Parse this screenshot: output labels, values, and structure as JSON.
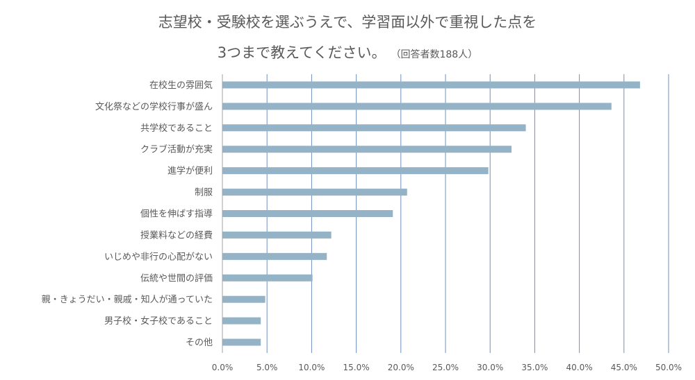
{
  "chart_data": {
    "type": "bar",
    "orientation": "horizontal",
    "title_line1": "志望校・受験校を選ぶうえで、学習面以外で重視した点を",
    "title_line2": "3つまで教えてください。",
    "subtitle": "（回答者数188人）",
    "categories": [
      "在校生の雰囲気",
      "文化祭などの学校行事が盛ん",
      "共学校であること",
      "クラブ活動が充実",
      "進学が便利",
      "制服",
      "個性を伸ばす指導",
      "授業料などの経費",
      "いじめや非行の心配がない",
      "伝統や世間の評価",
      "親・きょうだい・親戚・知人が通っていた",
      "男子校・女子校であること",
      "その他"
    ],
    "values": [
      46.8,
      43.6,
      34.0,
      32.4,
      29.8,
      20.7,
      19.1,
      12.2,
      11.7,
      10.1,
      4.8,
      4.3,
      4.3
    ],
    "xlim": [
      0,
      50
    ],
    "x_ticks": [
      "0.0%",
      "5.0%",
      "10.0%",
      "15.0%",
      "20.0%",
      "25.0%",
      "30.0%",
      "35.0%",
      "40.0%",
      "45.0%",
      "50.0%"
    ],
    "bar_color": "#95b3c7",
    "grid_color": "#6f8fbd",
    "grid": true,
    "legend": "none"
  }
}
